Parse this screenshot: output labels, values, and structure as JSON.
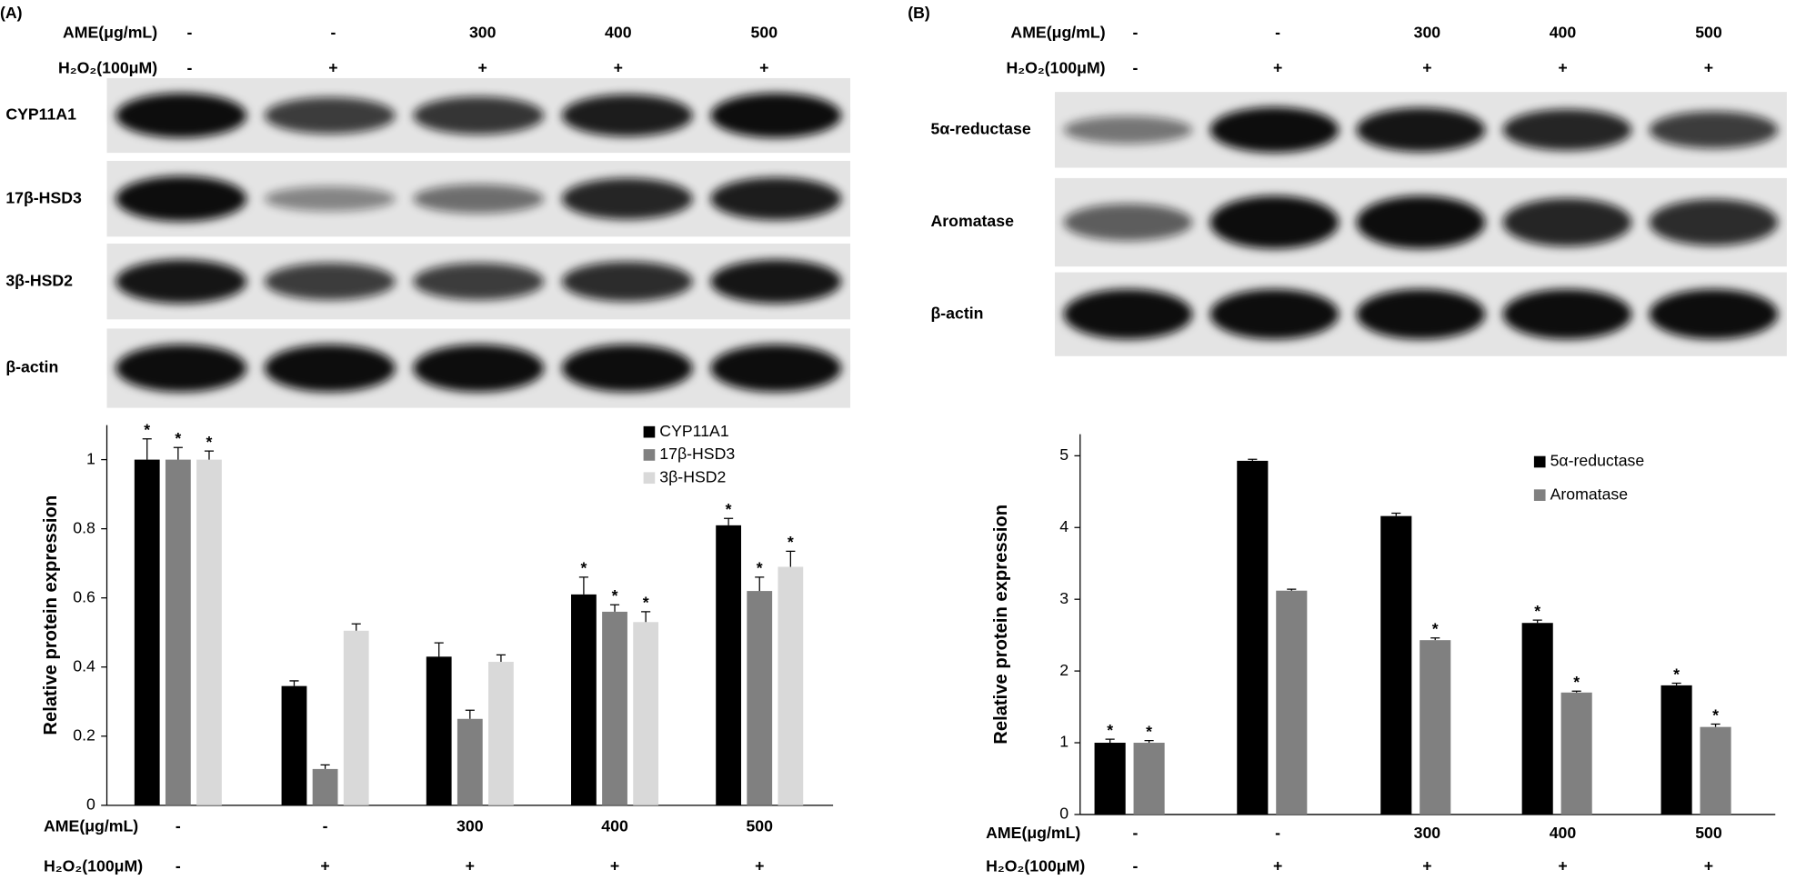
{
  "chart_data": [
    {
      "type": "bar",
      "panel": "(A)",
      "ame_label": "AME(μg/mL)",
      "h2o2_label": "H₂O₂(100μM)",
      "ame": [
        "-",
        "-",
        "300",
        "400",
        "500"
      ],
      "h2o2": [
        "-",
        "+",
        "+",
        "+",
        "+"
      ],
      "blot_rows": [
        "CYP11A1",
        "17β-HSD3",
        "3β-HSD2",
        "β-actin"
      ],
      "ylabel": "Relative protein expression",
      "ylim": [
        0,
        1.1
      ],
      "yticks": [
        0,
        0.2,
        0.4,
        0.6,
        0.8,
        1
      ],
      "legend": "upper right",
      "series": [
        {
          "name": "CYP11A1",
          "color": "#000000",
          "values": [
            1,
            0.345,
            0.43,
            0.61,
            0.81
          ],
          "errors": [
            0.06,
            0.015,
            0.04,
            0.05,
            0.02
          ],
          "significance": [
            "*",
            null,
            null,
            "*",
            "*"
          ]
        },
        {
          "name": "17β-HSD3",
          "color": "#808080",
          "values": [
            1,
            0.105,
            0.25,
            0.56,
            0.62
          ],
          "errors": [
            0.035,
            0.012,
            0.025,
            0.02,
            0.04
          ],
          "significance": [
            "*",
            null,
            null,
            "*",
            "*"
          ]
        },
        {
          "name": "3β-HSD2",
          "color": "#d9d9d9",
          "values": [
            1,
            0.505,
            0.415,
            0.53,
            0.69
          ],
          "errors": [
            0.025,
            0.02,
            0.02,
            0.03,
            0.045
          ],
          "significance": [
            "*",
            null,
            null,
            "*",
            "*"
          ]
        }
      ]
    },
    {
      "type": "bar",
      "panel": "(B)",
      "ame_label": "AME(μg/mL)",
      "h2o2_label": "H₂O₂(100μM)",
      "ame": [
        "-",
        "-",
        "300",
        "400",
        "500"
      ],
      "h2o2": [
        "-",
        "+",
        "+",
        "+",
        "+"
      ],
      "blot_rows": [
        "5α-reductase",
        "Aromatase",
        "β-actin"
      ],
      "ylabel": "Relative protein expression",
      "ylim": [
        0,
        5.3
      ],
      "yticks": [
        0,
        1,
        2,
        3,
        4,
        5
      ],
      "legend": "upper right",
      "series": [
        {
          "name": "5α-reductase",
          "color": "#000000",
          "values": [
            1,
            4.93,
            4.16,
            2.67,
            1.8
          ],
          "errors": [
            0.05,
            0.02,
            0.04,
            0.04,
            0.03
          ],
          "significance": [
            "*",
            null,
            null,
            "*",
            "*"
          ]
        },
        {
          "name": "Aromatase",
          "color": "#808080",
          "values": [
            1,
            3.12,
            2.43,
            1.7,
            1.22
          ],
          "errors": [
            0.03,
            0.02,
            0.03,
            0.02,
            0.04
          ],
          "significance": [
            "*",
            null,
            "*",
            "*",
            "*"
          ]
        }
      ]
    }
  ]
}
